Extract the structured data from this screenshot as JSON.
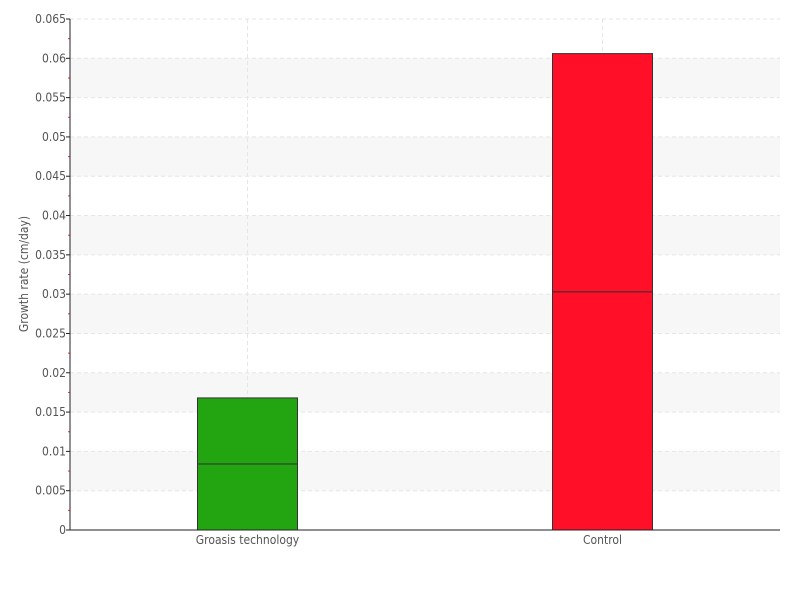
{
  "chart_data": {
    "type": "bar",
    "stacked": true,
    "title": "",
    "xlabel": "",
    "ylabel": "Growth rate (cm/day)",
    "ylim": [
      0,
      0.065
    ],
    "yticks": [
      "0",
      "0.005",
      "0.01",
      "0.015",
      "0.02",
      "0.025",
      "0.03",
      "0.035",
      "0.04",
      "0.045",
      "0.05",
      "0.055",
      "0.06",
      "0.065"
    ],
    "categories": [
      "Groasis technology",
      "Control"
    ],
    "series": [
      {
        "values": [
          0.0084,
          0.0303
        ]
      },
      {
        "values": [
          0.0084,
          0.0303
        ]
      }
    ],
    "colors": [
      "#22a511",
      "#ff0f28"
    ],
    "grid": true,
    "legend": "none"
  }
}
